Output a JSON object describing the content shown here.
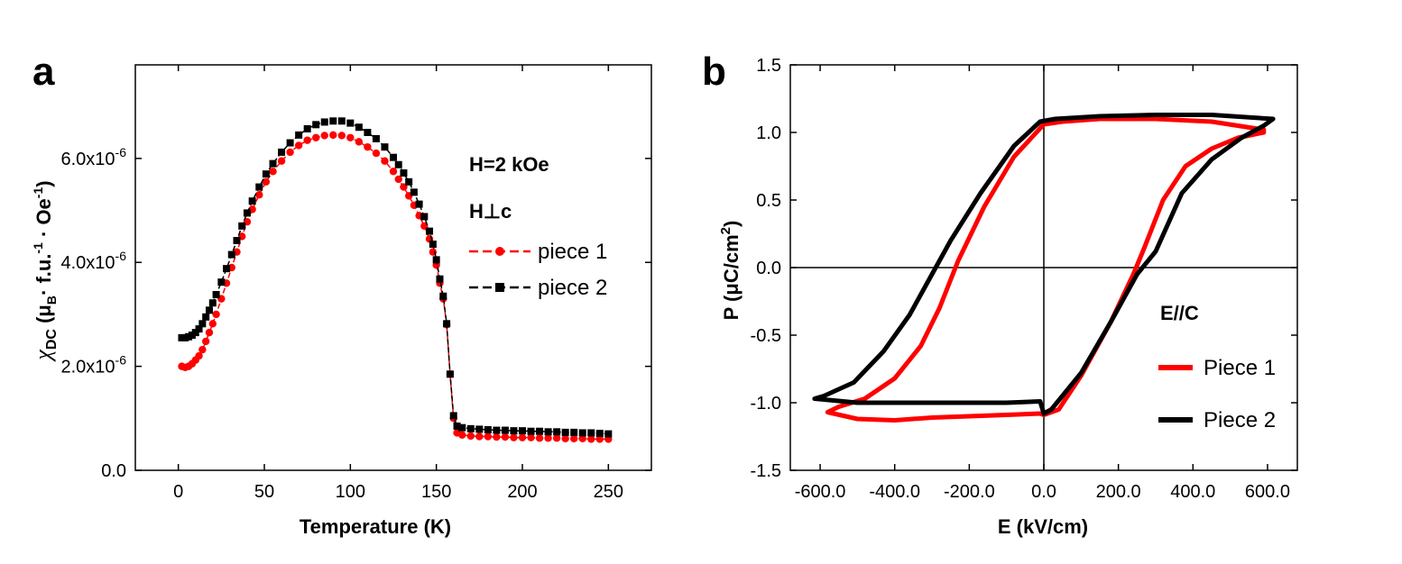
{
  "chart_data": [
    {
      "panel_label": "a",
      "type": "scatter",
      "xlabel": "Temperature (K)",
      "ylabel": "χDC (μB· f.u.-1 · Oe-1)",
      "ylabel_parts": {
        "main": "χ",
        "sub": "DC",
        "rest1": " (μ",
        "sub2": "B",
        "rest2": "· f.u.",
        "sup1": "-1",
        "rest3": " · Oe",
        "sup2": "-1",
        "rest4": ")"
      },
      "xlim": [
        -25,
        275
      ],
      "ylim": [
        0,
        7.8e-06
      ],
      "xticks": [
        0,
        50,
        100,
        150,
        200,
        250
      ],
      "xtick_labels": [
        "0",
        "50",
        "100",
        "150",
        "200",
        "250"
      ],
      "yticks": [
        0,
        2e-06,
        4e-06,
        6e-06
      ],
      "ytick_labels": [
        {
          "base": "0.0",
          "exp": ""
        },
        {
          "base": "2.0x10",
          "exp": "-6"
        },
        {
          "base": "4.0x10",
          "exp": "-6"
        },
        {
          "base": "6.0x10",
          "exp": "-6"
        }
      ],
      "annotations": [
        "H=2 kOe",
        "H⊥c"
      ],
      "legend_position": "center-right",
      "series": [
        {
          "name": "piece 1",
          "color": "#ff0000",
          "marker": "circle",
          "line": "dash",
          "x": [
            2,
            4,
            6,
            8,
            10,
            12,
            14,
            16,
            18,
            20,
            22,
            25,
            28,
            31,
            34,
            37,
            40,
            43,
            47,
            51,
            55,
            60,
            65,
            70,
            75,
            80,
            85,
            90,
            95,
            100,
            105,
            110,
            115,
            120,
            125,
            128,
            131,
            134,
            137,
            140,
            143,
            146,
            148,
            150,
            152,
            154,
            156,
            158,
            160,
            162,
            165,
            170,
            175,
            180,
            185,
            190,
            195,
            200,
            205,
            210,
            215,
            220,
            225,
            230,
            235,
            240,
            245,
            250
          ],
          "y": [
            2e-06,
            1.98e-06,
            2e-06,
            2.05e-06,
            2.12e-06,
            2.2e-06,
            2.32e-06,
            2.48e-06,
            2.65e-06,
            2.82e-06,
            3e-06,
            3.3e-06,
            3.6e-06,
            3.9e-06,
            4.2e-06,
            4.5e-06,
            4.78e-06,
            5.02e-06,
            5.3e-06,
            5.55e-06,
            5.75e-06,
            5.95e-06,
            6.12e-06,
            6.25e-06,
            6.35e-06,
            6.4e-06,
            6.44e-06,
            6.45e-06,
            6.44e-06,
            6.4e-06,
            6.32e-06,
            6.22e-06,
            6.1e-06,
            5.95e-06,
            5.75e-06,
            5.6e-06,
            5.45e-06,
            5.28e-06,
            5.1e-06,
            4.9e-06,
            4.7e-06,
            4.45e-06,
            4.2e-06,
            3.95e-06,
            3.6e-06,
            3.3e-06,
            2.8e-06,
            1.85e-06,
            1e-06,
            7.2e-07,
            6.8e-07,
            6.6e-07,
            6.5e-07,
            6.5e-07,
            6.4e-07,
            6.4e-07,
            6.3e-07,
            6.3e-07,
            6.3e-07,
            6.2e-07,
            6.2e-07,
            6.2e-07,
            6.1e-07,
            6.1e-07,
            6.1e-07,
            6e-07,
            6e-07,
            6e-07
          ]
        },
        {
          "name": "piece 2",
          "color": "#000000",
          "marker": "square",
          "line": "dash",
          "x": [
            2,
            4,
            6,
            8,
            10,
            12,
            14,
            16,
            18,
            20,
            22,
            25,
            28,
            31,
            34,
            37,
            40,
            43,
            47,
            51,
            55,
            60,
            65,
            70,
            75,
            80,
            85,
            90,
            95,
            100,
            105,
            110,
            115,
            120,
            125,
            128,
            131,
            134,
            137,
            140,
            143,
            146,
            148,
            150,
            152,
            154,
            156,
            158,
            160,
            162,
            165,
            170,
            175,
            180,
            185,
            190,
            195,
            200,
            205,
            210,
            215,
            220,
            225,
            230,
            235,
            240,
            245,
            250
          ],
          "y": [
            2.55e-06,
            2.55e-06,
            2.57e-06,
            2.6e-06,
            2.65e-06,
            2.72e-06,
            2.82e-06,
            2.95e-06,
            3.08e-06,
            3.22e-06,
            3.38e-06,
            3.62e-06,
            3.88e-06,
            4.15e-06,
            4.42e-06,
            4.7e-06,
            4.95e-06,
            5.18e-06,
            5.45e-06,
            5.7e-06,
            5.9e-06,
            6.12e-06,
            6.3e-06,
            6.45e-06,
            6.57e-06,
            6.65e-06,
            6.7e-06,
            6.72e-06,
            6.72e-06,
            6.68e-06,
            6.6e-06,
            6.5e-06,
            6.38e-06,
            6.22e-06,
            6.02e-06,
            5.88e-06,
            5.72e-06,
            5.55e-06,
            5.35e-06,
            5.12e-06,
            4.88e-06,
            4.6e-06,
            4.35e-06,
            4.05e-06,
            3.68e-06,
            3.35e-06,
            2.82e-06,
            1.85e-06,
            1.05e-06,
            8.5e-07,
            8.2e-07,
            8e-07,
            7.9e-07,
            7.8e-07,
            7.7e-07,
            7.7e-07,
            7.6e-07,
            7.6e-07,
            7.5e-07,
            7.5e-07,
            7.4e-07,
            7.4e-07,
            7.3e-07,
            7.3e-07,
            7.2e-07,
            7.2e-07,
            7.1e-07,
            7e-07
          ]
        }
      ]
    },
    {
      "panel_label": "b",
      "type": "line",
      "xlabel": "E (kV/cm)",
      "ylabel": "P (μC/cm2)",
      "ylabel_parts": {
        "main": "P (μC/cm",
        "sup": "2",
        "rest": ")"
      },
      "xlim": [
        -680,
        680
      ],
      "ylim": [
        -1.5,
        1.5
      ],
      "xticks": [
        -600,
        -400,
        -200,
        0,
        200,
        400,
        600
      ],
      "xtick_labels": [
        "-600.0",
        "-400.0",
        "-200.0",
        "0.0",
        "200.0",
        "400.0",
        "600.0"
      ],
      "yticks": [
        -1.5,
        -1.0,
        -0.5,
        0.0,
        0.5,
        1.0,
        1.5
      ],
      "ytick_labels": [
        "-1.5",
        "-1.0",
        "-0.5",
        "0.0",
        "0.5",
        "1.0",
        "1.5"
      ],
      "annotations": [
        "E//C"
      ],
      "legend_position": "lower-right",
      "series": [
        {
          "name": "Piece 1",
          "color": "#ff0000",
          "x": [
            590,
            450,
            300,
            150,
            50,
            0,
            -80,
            -160,
            -230,
            -280,
            -330,
            -400,
            -480,
            -550,
            -580,
            -500,
            -400,
            -300,
            -200,
            -100,
            -10,
            0,
            40,
            100,
            180,
            240,
            270,
            320,
            380,
            450,
            520,
            590
          ],
          "y": [
            1.02,
            1.08,
            1.1,
            1.1,
            1.08,
            1.06,
            0.82,
            0.45,
            0.05,
            -0.3,
            -0.58,
            -0.82,
            -0.97,
            -1.03,
            -1.07,
            -1.12,
            -1.13,
            -1.11,
            -1.1,
            -1.09,
            -1.08,
            -1.09,
            -1.05,
            -0.8,
            -0.4,
            -0.05,
            0.15,
            0.5,
            0.75,
            0.88,
            0.96,
            1.0
          ]
        },
        {
          "name": "Piece 2",
          "color": "#000000",
          "x": [
            615,
            450,
            300,
            150,
            30,
            -10,
            -80,
            -170,
            -250,
            -300,
            -360,
            -430,
            -510,
            -590,
            -615,
            -500,
            -350,
            -200,
            -100,
            -10,
            0,
            20,
            100,
            180,
            250,
            300,
            370,
            450,
            530,
            590,
            615
          ],
          "y": [
            1.1,
            1.13,
            1.13,
            1.12,
            1.1,
            1.08,
            0.9,
            0.55,
            0.2,
            -0.05,
            -0.35,
            -0.62,
            -0.85,
            -0.95,
            -0.97,
            -1.0,
            -1.0,
            -1.0,
            -1.0,
            -0.99,
            -1.08,
            -1.05,
            -0.78,
            -0.4,
            -0.05,
            0.12,
            0.55,
            0.8,
            0.96,
            1.05,
            1.1
          ]
        }
      ]
    }
  ]
}
